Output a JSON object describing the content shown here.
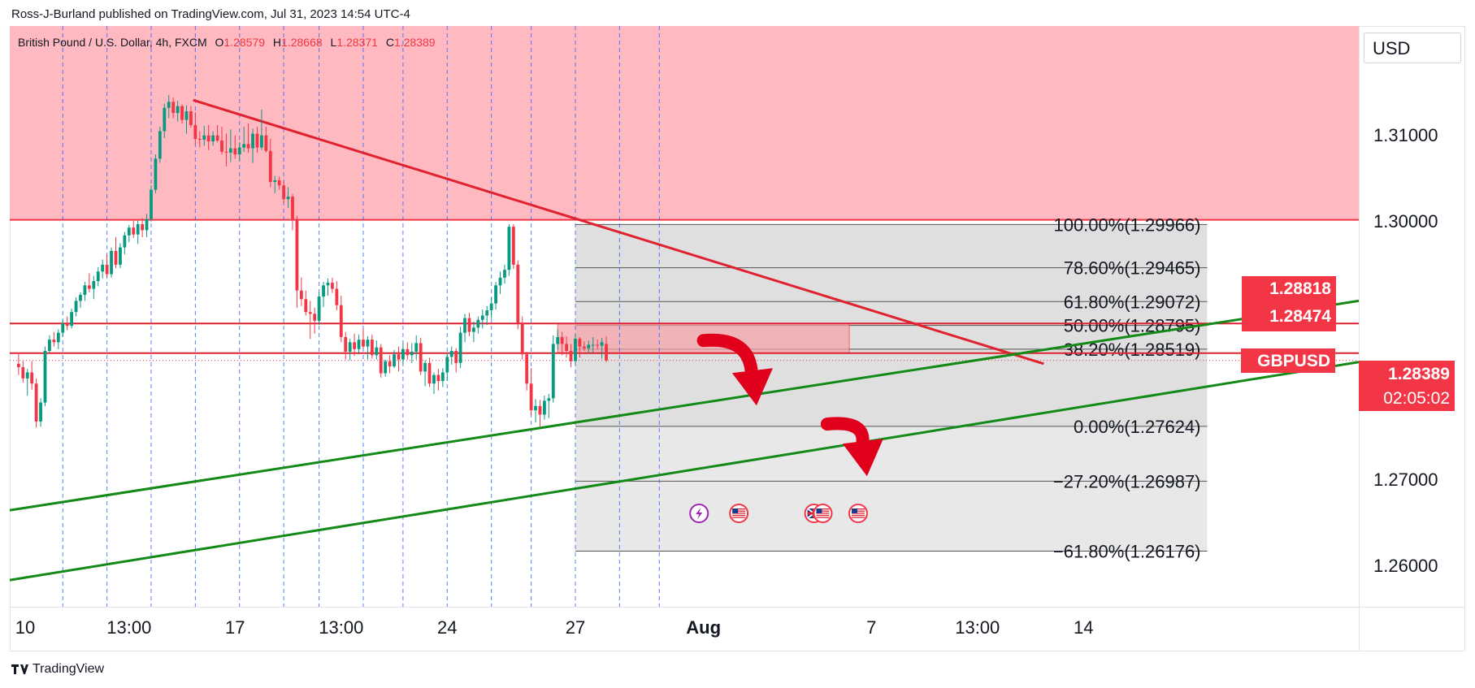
{
  "header": {
    "published": "Ross-J-Burland published on TradingView.com, Jul 31, 2023 14:54 UTC-4"
  },
  "legend": {
    "symbol": "British Pound / U.S. Dollar, 4h, FXCM",
    "o_label": "O",
    "o": "1.28579",
    "h_label": "H",
    "h": "1.28668",
    "l_label": "L",
    "l": "1.28371",
    "c_label": "C",
    "c": "1.28389"
  },
  "currency_button": "USD",
  "footer": {
    "brand": "TradingView"
  },
  "colors": {
    "up": "#089981",
    "down": "#f23645",
    "resistance_zone": "#ffb9c0",
    "fib_box": "#d9d9d9",
    "trendline_red": "#e0212f",
    "trendline_green": "#138a17"
  },
  "price_tags": {
    "tag1": "1.28818",
    "tag2": "1.28474",
    "symbol": "GBPUSD",
    "last": "1.28389",
    "countdown": "02:05:02"
  },
  "chart_data": {
    "type": "candlestick",
    "symbol": "GBPUSD",
    "timeframe": "4h",
    "y_axis": {
      "ticks": [
        "1.26000",
        "1.27000",
        "1.30000",
        "1.31000"
      ],
      "range": [
        1.2553,
        1.3227
      ]
    },
    "x_axis": {
      "ticks": [
        {
          "label": "10",
          "bar": 1.5
        },
        {
          "label": "13:00",
          "bar": 25
        },
        {
          "label": "17",
          "bar": 49
        },
        {
          "label": "13:00",
          "bar": 73
        },
        {
          "label": "24",
          "bar": 97
        },
        {
          "label": "27",
          "bar": 126
        },
        {
          "label": "Aug",
          "bar": 155,
          "bold": true
        },
        {
          "label": "7",
          "bar": 193
        },
        {
          "label": "13:00",
          "bar": 217
        },
        {
          "label": "14",
          "bar": 241
        }
      ],
      "bar_span": [
        -2,
        303.3
      ]
    },
    "ohlc": [
      [
        1.2835,
        1.2848,
        1.2822,
        1.2831
      ],
      [
        1.2831,
        1.2838,
        1.2813,
        1.2818
      ],
      [
        1.2818,
        1.2829,
        1.2798,
        1.2825
      ],
      [
        1.2825,
        1.2838,
        1.2805,
        1.2812
      ],
      [
        1.2812,
        1.2818,
        1.2761,
        1.2768
      ],
      [
        1.2768,
        1.2795,
        1.2762,
        1.279
      ],
      [
        1.279,
        1.2855,
        1.2786,
        1.285
      ],
      [
        1.285,
        1.2868,
        1.2848,
        1.2863
      ],
      [
        1.2863,
        1.2872,
        1.2855,
        1.286
      ],
      [
        1.286,
        1.2875,
        1.2852,
        1.2871
      ],
      [
        1.2871,
        1.2886,
        1.2866,
        1.2882
      ],
      [
        1.2882,
        1.289,
        1.2874,
        1.2879
      ],
      [
        1.2879,
        1.2899,
        1.2876,
        1.2895
      ],
      [
        1.2895,
        1.2912,
        1.289,
        1.2908
      ],
      [
        1.2908,
        1.2918,
        1.29,
        1.2915
      ],
      [
        1.2915,
        1.293,
        1.2908,
        1.2926
      ],
      [
        1.2926,
        1.294,
        1.2918,
        1.2922
      ],
      [
        1.2922,
        1.2937,
        1.291,
        1.2931
      ],
      [
        1.2931,
        1.2947,
        1.2925,
        1.2942
      ],
      [
        1.2942,
        1.2956,
        1.2934,
        1.295
      ],
      [
        1.295,
        1.2962,
        1.2935,
        1.2939
      ],
      [
        1.2939,
        1.297,
        1.2935,
        1.2966
      ],
      [
        1.2966,
        1.2982,
        1.2946,
        1.295
      ],
      [
        1.295,
        1.2975,
        1.2946,
        1.297
      ],
      [
        1.297,
        1.2988,
        1.2962,
        1.2984
      ],
      [
        1.2984,
        1.2996,
        1.2976,
        1.2993
      ],
      [
        1.2993,
        1.3001,
        1.2981,
        1.2985
      ],
      [
        1.2985,
        1.3001,
        1.2974,
        1.2997
      ],
      [
        1.2997,
        1.3004,
        1.2982,
        1.299
      ],
      [
        1.299,
        1.3009,
        1.2982,
        1.3003
      ],
      [
        1.3003,
        1.3042,
        1.3,
        1.3037
      ],
      [
        1.3037,
        1.3078,
        1.3033,
        1.3073
      ],
      [
        1.3073,
        1.311,
        1.3068,
        1.3105
      ],
      [
        1.3105,
        1.3137,
        1.3097,
        1.3132
      ],
      [
        1.3132,
        1.3147,
        1.312,
        1.3139
      ],
      [
        1.3139,
        1.3144,
        1.312,
        1.3126
      ],
      [
        1.3126,
        1.314,
        1.3116,
        1.3134
      ],
      [
        1.3134,
        1.3136,
        1.3114,
        1.3118
      ],
      [
        1.3118,
        1.3135,
        1.3102,
        1.3128
      ],
      [
        1.3128,
        1.3134,
        1.3109,
        1.3112
      ],
      [
        1.3112,
        1.3127,
        1.309,
        1.3096
      ],
      [
        1.3096,
        1.3105,
        1.3086,
        1.3095
      ],
      [
        1.3095,
        1.3111,
        1.3088,
        1.31
      ],
      [
        1.31,
        1.3112,
        1.3083,
        1.3093
      ],
      [
        1.3093,
        1.3105,
        1.3088,
        1.31
      ],
      [
        1.31,
        1.3112,
        1.3092,
        1.3094
      ],
      [
        1.3094,
        1.311,
        1.3078,
        1.3081
      ],
      [
        1.3081,
        1.3102,
        1.3064,
        1.308
      ],
      [
        1.308,
        1.3107,
        1.3069,
        1.3085
      ],
      [
        1.3085,
        1.31,
        1.3073,
        1.3078
      ],
      [
        1.3078,
        1.3092,
        1.307,
        1.3086
      ],
      [
        1.3086,
        1.311,
        1.3081,
        1.309
      ],
      [
        1.309,
        1.3114,
        1.308,
        1.3085
      ],
      [
        1.3085,
        1.3108,
        1.3068,
        1.3102
      ],
      [
        1.3102,
        1.311,
        1.308,
        1.3086
      ],
      [
        1.3086,
        1.313,
        1.3083,
        1.31
      ],
      [
        1.31,
        1.311,
        1.308,
        1.3082
      ],
      [
        1.3082,
        1.3096,
        1.304,
        1.3046
      ],
      [
        1.3046,
        1.3053,
        1.3033,
        1.3048
      ],
      [
        1.3048,
        1.3052,
        1.3037,
        1.3042
      ],
      [
        1.3042,
        1.3047,
        1.3021,
        1.3026
      ],
      [
        1.3026,
        1.304,
        1.3016,
        1.3029
      ],
      [
        1.3029,
        1.3032,
        1.299,
        1.3003
      ],
      [
        1.3003,
        1.3007,
        1.29,
        1.292
      ],
      [
        1.292,
        1.2935,
        1.2902,
        1.291
      ],
      [
        1.291,
        1.292,
        1.2891,
        1.2895
      ],
      [
        1.2895,
        1.2908,
        1.2864,
        1.2893
      ],
      [
        1.2893,
        1.29,
        1.287,
        1.2885
      ],
      [
        1.2885,
        1.2918,
        1.288,
        1.2913
      ],
      [
        1.2913,
        1.293,
        1.2901,
        1.2926
      ],
      [
        1.2926,
        1.2934,
        1.2914,
        1.2929
      ],
      [
        1.2929,
        1.2935,
        1.2917,
        1.2922
      ],
      [
        1.2922,
        1.2931,
        1.2897,
        1.2903
      ],
      [
        1.2903,
        1.2914,
        1.286,
        1.2866
      ],
      [
        1.2866,
        1.2872,
        1.284,
        1.2849
      ],
      [
        1.2849,
        1.2864,
        1.2839,
        1.286
      ],
      [
        1.286,
        1.287,
        1.2844,
        1.2852
      ],
      [
        1.2852,
        1.2869,
        1.2846,
        1.2863
      ],
      [
        1.2863,
        1.2876,
        1.2852,
        1.2855
      ],
      [
        1.2855,
        1.2867,
        1.284,
        1.2863
      ],
      [
        1.2863,
        1.2869,
        1.2841,
        1.2845
      ],
      [
        1.2845,
        1.2862,
        1.284,
        1.2854
      ],
      [
        1.2854,
        1.2858,
        1.2819,
        1.2824
      ],
      [
        1.2824,
        1.284,
        1.282,
        1.2838
      ],
      [
        1.2838,
        1.2845,
        1.2824,
        1.2832
      ],
      [
        1.2832,
        1.2851,
        1.283,
        1.2846
      ],
      [
        1.2846,
        1.2855,
        1.2826,
        1.284
      ],
      [
        1.284,
        1.2859,
        1.2834,
        1.2852
      ],
      [
        1.2852,
        1.286,
        1.284,
        1.2845
      ],
      [
        1.2845,
        1.2859,
        1.2836,
        1.2849
      ],
      [
        1.2849,
        1.2868,
        1.284,
        1.2859
      ],
      [
        1.2859,
        1.2865,
        1.2822,
        1.2826
      ],
      [
        1.2826,
        1.2839,
        1.2809,
        1.2836
      ],
      [
        1.2836,
        1.2842,
        1.2808,
        1.2812
      ],
      [
        1.2812,
        1.2825,
        1.28,
        1.2822
      ],
      [
        1.2822,
        1.2829,
        1.2804,
        1.2815
      ],
      [
        1.2815,
        1.283,
        1.2808,
        1.2825
      ],
      [
        1.2825,
        1.2848,
        1.2815,
        1.2843
      ],
      [
        1.2843,
        1.2855,
        1.2834,
        1.285
      ],
      [
        1.285,
        1.2853,
        1.2825,
        1.2836
      ],
      [
        1.2836,
        1.2878,
        1.283,
        1.2871
      ],
      [
        1.2871,
        1.2893,
        1.286,
        1.2888
      ],
      [
        1.2888,
        1.2894,
        1.2867,
        1.2872
      ],
      [
        1.2872,
        1.2884,
        1.286,
        1.2877
      ],
      [
        1.2877,
        1.289,
        1.287,
        1.2886
      ],
      [
        1.2886,
        1.2898,
        1.2876,
        1.2891
      ],
      [
        1.2891,
        1.2902,
        1.288,
        1.2897
      ],
      [
        1.2897,
        1.2912,
        1.2888,
        1.2905
      ],
      [
        1.2905,
        1.293,
        1.2898,
        1.2926
      ],
      [
        1.2926,
        1.2942,
        1.2916,
        1.2935
      ],
      [
        1.2935,
        1.295,
        1.2928,
        1.2944
      ],
      [
        1.2944,
        1.2997,
        1.2937,
        1.2994
      ],
      [
        1.2994,
        1.2997,
        1.2945,
        1.295
      ],
      [
        1.295,
        1.2955,
        1.2875,
        1.2882
      ],
      [
        1.2882,
        1.289,
        1.284,
        1.2846
      ],
      [
        1.2846,
        1.2849,
        1.2804,
        1.2812
      ],
      [
        1.2812,
        1.283,
        1.2775,
        1.2781
      ],
      [
        1.2781,
        1.2794,
        1.2767,
        1.2786
      ],
      [
        1.2786,
        1.2793,
        1.2762,
        1.2776
      ],
      [
        1.2776,
        1.2798,
        1.277,
        1.2792
      ],
      [
        1.2792,
        1.28,
        1.2772,
        1.2795
      ],
      [
        1.2795,
        1.2868,
        1.279,
        1.2858
      ],
      [
        1.2858,
        1.2875,
        1.2851,
        1.2866
      ],
      [
        1.2866,
        1.2872,
        1.2845,
        1.2858
      ],
      [
        1.2858,
        1.2867,
        1.2842,
        1.285
      ],
      [
        1.285,
        1.2858,
        1.2831,
        1.2838
      ],
      [
        1.2838,
        1.2869,
        1.2834,
        1.2864
      ],
      [
        1.2864,
        1.2866,
        1.2842,
        1.2855
      ],
      [
        1.2855,
        1.2861,
        1.285,
        1.2853
      ],
      [
        1.2853,
        1.2862,
        1.2847,
        1.2857
      ],
      [
        1.2857,
        1.2866,
        1.2848,
        1.2857
      ],
      [
        1.2857,
        1.2863,
        1.2852,
        1.2856
      ],
      [
        1.2856,
        1.2865,
        1.2841,
        1.286
      ],
      [
        1.2858,
        1.2867,
        1.2837,
        1.2839
      ]
    ],
    "ohlc_start_bar": 0,
    "zones": {
      "resistance": {
        "top": 1.3227,
        "bottom": 1.3002
      },
      "supply_box": {
        "top": 1.28818,
        "bottom": 1.28474,
        "from_bar": 122,
        "to_bar": 188
      }
    },
    "horizontal_lines": [
      1.28818,
      1.28474
    ],
    "fibonacci": {
      "from_bar": 126,
      "to_bar": 269,
      "levels": [
        {
          "label": "100.00%(1.29966)",
          "price": 1.29966
        },
        {
          "label": "78.60%(1.29465)",
          "price": 1.29465
        },
        {
          "label": "61.80%(1.29072)",
          "price": 1.29072
        },
        {
          "label": "50.00%(1.28795)",
          "price": 1.28795
        },
        {
          "label": "38.20%(1.28519)",
          "price": 1.28519
        },
        {
          "label": "0.00%(1.27624)",
          "price": 1.27624
        },
        {
          "label": "−27.20%(1.26987)",
          "price": 1.26987
        },
        {
          "label": "−61.80%(1.26176)",
          "price": 1.26176
        }
      ]
    },
    "trendlines": [
      {
        "color": "red",
        "from": [
          39.5,
          1.3141
        ],
        "to": [
          232,
          1.2835
        ]
      },
      {
        "color": "green",
        "from": [
          -2,
          1.2665
        ],
        "to": [
          303.3,
          1.2908
        ]
      },
      {
        "color": "green",
        "from": [
          -2,
          1.2584
        ],
        "to": [
          303.3,
          1.2837
        ]
      }
    ],
    "session_lines_bars": [
      10,
      20,
      30,
      40,
      50,
      60,
      68,
      78,
      87,
      97,
      107,
      116,
      126,
      136,
      145
    ],
    "arrows": [
      {
        "from": [
          155,
          1.2862
        ],
        "to": [
          167,
          1.2796
        ]
      },
      {
        "from": [
          183,
          1.2765
        ],
        "to": [
          192,
          1.2714
        ]
      }
    ],
    "events": [
      {
        "type": "lightning",
        "bar": 154
      },
      {
        "type": "flag-us",
        "bar": 163
      },
      {
        "type": "flag-uk",
        "bar": 180
      },
      {
        "type": "flag-us",
        "bar": 182
      },
      {
        "type": "flag-us",
        "bar": 190
      }
    ]
  }
}
